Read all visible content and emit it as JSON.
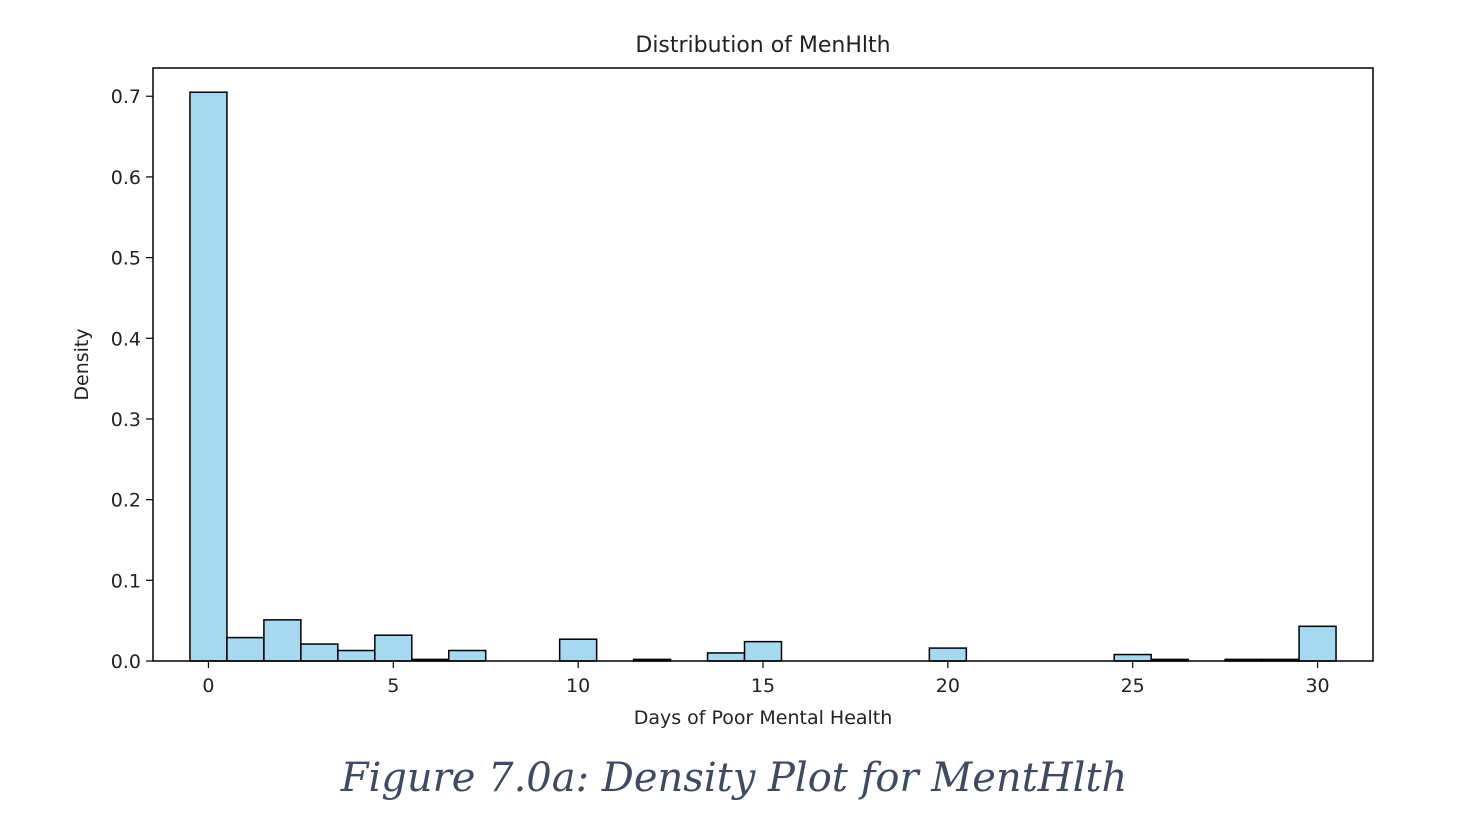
{
  "caption": "Figure 7.0a: Density Plot for MentHlth",
  "chart_data": {
    "type": "bar",
    "title": "Distribution of MenHlth",
    "xlabel": "Days of Poor Mental Health",
    "ylabel": "Density",
    "xlim": [
      -1.5,
      31.5
    ],
    "ylim": [
      0,
      0.735
    ],
    "xticks": [
      0,
      5,
      10,
      15,
      20,
      25,
      30
    ],
    "yticks": [
      0.0,
      0.1,
      0.2,
      0.3,
      0.4,
      0.5,
      0.6,
      0.7
    ],
    "grid": false,
    "bin_edges": [
      -0.5,
      0.5,
      1.5,
      2.5,
      3.5,
      4.5,
      5.5,
      6.5,
      7.5,
      8.5,
      9.5,
      10.5,
      11.5,
      12.5,
      13.5,
      14.5,
      15.5,
      16.5,
      17.5,
      18.5,
      19.5,
      20.5,
      21.5,
      22.5,
      23.5,
      24.5,
      25.5,
      26.5,
      27.5,
      28.5,
      29.5,
      30.5
    ],
    "values": [
      0.705,
      0.029,
      0.051,
      0.021,
      0.013,
      0.032,
      0.002,
      0.013,
      0.0,
      0.0,
      0.027,
      0.0,
      0.002,
      0.0,
      0.01,
      0.024,
      0.0,
      0.0,
      0.0,
      0.0,
      0.016,
      0.0,
      0.0,
      0.0,
      0.0,
      0.008,
      0.002,
      0.0,
      0.002,
      0.002,
      0.043
    ],
    "bar_color": "#a6d8ef",
    "edge_color": "#000000"
  }
}
